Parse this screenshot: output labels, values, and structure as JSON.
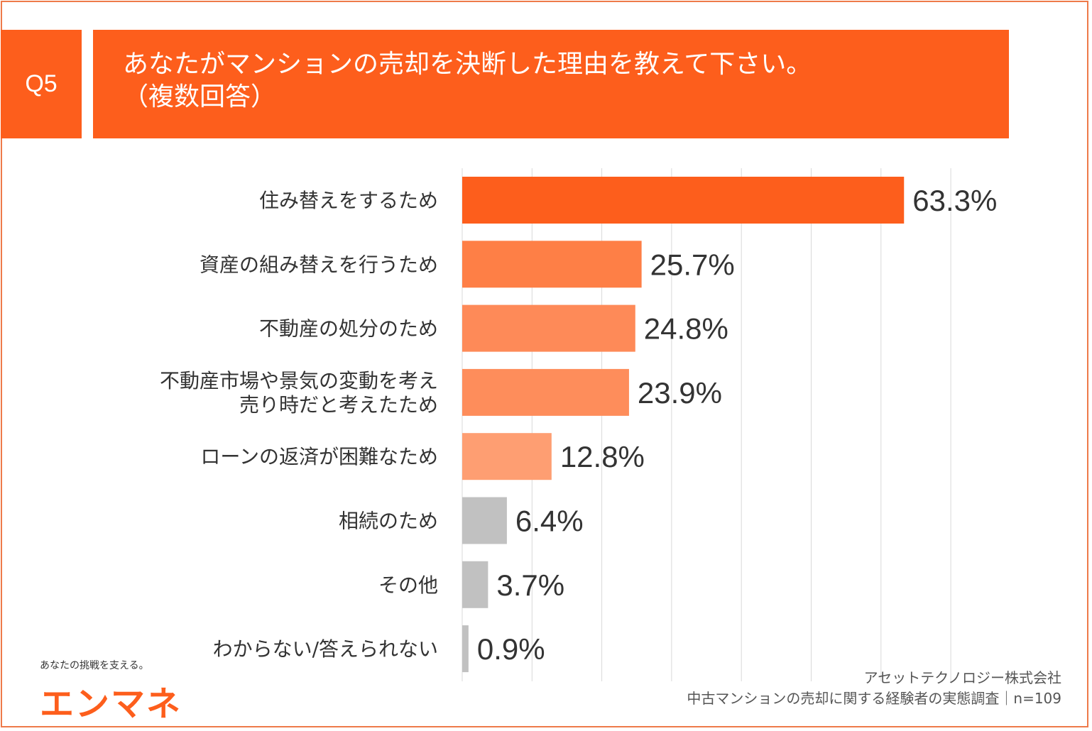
{
  "question": {
    "badge": "Q5",
    "title": "あなたがマンションの売却を決断した理由を教えて下さい。\n（複数回答）"
  },
  "chart_data": {
    "type": "bar",
    "orientation": "horizontal",
    "categories": [
      "住み替えをするため",
      "資産の組み替えを行うため",
      "不動産の処分のため",
      "不動産市場や景気の変動を考え\n売り時だと考えたため",
      "ローンの返済が困難なため",
      "相続のため",
      "その他",
      "わからない/答えられない"
    ],
    "values": [
      63.3,
      25.7,
      24.8,
      23.9,
      12.8,
      6.4,
      3.7,
      0.9
    ],
    "value_labels": [
      "63.3%",
      "25.7%",
      "24.8%",
      "23.9%",
      "12.8%",
      "6.4%",
      "3.7%",
      "0.9%"
    ],
    "bar_colors": [
      "#fd5e1c",
      "#fe7f46",
      "#fe8a58",
      "#fe8d5b",
      "#fe9e72",
      "#c1c1c1",
      "#c1c1c1",
      "#c1c1c1"
    ],
    "xlim": [
      0,
      70
    ],
    "grid": true,
    "gridlines": [
      0,
      10,
      20,
      30,
      40,
      50,
      60,
      70
    ]
  },
  "logo": {
    "tagline": "あなたの挑戦を支える。",
    "name": "エンマネ"
  },
  "source": {
    "company": "アセットテクノロジー株式会社",
    "survey": "中古マンションの売却に関する経験者の実態調査｜n=109"
  },
  "colors": {
    "accent": "#fd5e1c",
    "frame": "#ee7a4a"
  }
}
